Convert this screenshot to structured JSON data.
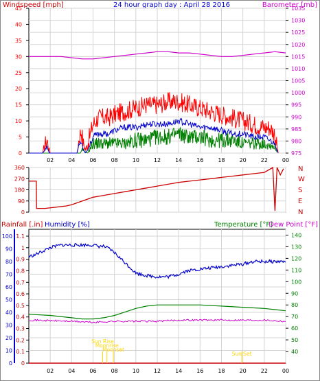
{
  "header": {
    "left_label": "Windspeed [mph]",
    "title": "24 hour graph day : April 28 2016",
    "right_label": "Barometer [mb]"
  },
  "direction_letters": [
    "N",
    "W",
    "S",
    "E",
    "N"
  ],
  "lower_labels": {
    "rainfall": "Rainfall [.in]",
    "humidity": "Humidity [%]",
    "temperature": "Temperature [°F]",
    "dewpoint": "Dew Point [°F]"
  },
  "sun_events": [
    {
      "label": "Sun Rise",
      "hour": 6.9
    },
    {
      "label": "Moonrise",
      "hour": 7.3
    },
    {
      "label": "Moonset",
      "hour": 7.9
    },
    {
      "label": "Sun Set",
      "hour": 19.9
    }
  ],
  "colors": {
    "wind": "#ff0000",
    "gust_avg": "#0000cc",
    "wind_low": "#008000",
    "baro": "#cc00cc",
    "dir": "#cc0000",
    "humidity": "#0000cc",
    "temperature": "#008000",
    "dewpoint": "#cc00cc",
    "rain": "#cc0000",
    "sun": "#ffd700",
    "grid": "#d4d4d4",
    "axis": "#000000"
  },
  "chart_data": [
    {
      "type": "line",
      "title": "24 hour graph day : April 28 2016",
      "xlabel": "",
      "x_ticks": [
        "02",
        "04",
        "06",
        "08",
        "10",
        "12",
        "14",
        "16",
        "18",
        "20",
        "22",
        "00"
      ],
      "y_left_label": "Windspeed [mph]",
      "y_left_ticks": [
        "0",
        "5",
        "10",
        "15",
        "20",
        "25",
        "30",
        "35",
        "40",
        "45"
      ],
      "y_left_range": [
        0,
        45
      ],
      "y_right_label": "Barometer [mb]",
      "y_right_ticks": [
        "975",
        "980",
        "985",
        "990",
        "995",
        "1000",
        "1005",
        "1010",
        "1015",
        "1020",
        "1025",
        "1030",
        "1035"
      ],
      "y_right_range": [
        975,
        1035
      ],
      "series": [
        {
          "axis": "left",
          "hours": [
            0,
            1.3,
            1.5,
            1.7,
            1.9,
            2.0,
            4.5,
            4.7,
            4.9,
            5.1,
            5.3,
            5.5,
            6.0,
            6.5,
            7.0,
            7.5,
            8.0,
            9.0,
            10.0,
            11.0,
            12.0,
            13.0,
            14.0,
            15.0,
            16.0,
            17.0,
            18.0,
            19.0,
            20.0,
            21.0,
            22.0,
            22.5,
            23.0,
            23.3
          ],
          "values": [
            0,
            0,
            3,
            4,
            1,
            0,
            0,
            5,
            7,
            3,
            1,
            3,
            9,
            11,
            11,
            11,
            12,
            13,
            14,
            15,
            15,
            16,
            16,
            15,
            14,
            13,
            12,
            11,
            10,
            9,
            8,
            8,
            6,
            0
          ]
        },
        {
          "axis": "left",
          "hours": [
            0,
            1.3,
            1.5,
            1.7,
            1.9,
            2.0,
            4.5,
            4.7,
            4.9,
            5.1,
            5.3,
            5.5,
            6.0,
            6.5,
            7.0,
            7.5,
            8.0,
            9.0,
            10.0,
            11.0,
            12.0,
            13.0,
            14.0,
            15.0,
            16.0,
            17.0,
            18.0,
            19.0,
            20.0,
            21.0,
            22.0,
            22.5,
            23.0,
            23.3
          ],
          "values": [
            0,
            0,
            1,
            2,
            0,
            0,
            0,
            3,
            4,
            1,
            0,
            1,
            5,
            6,
            6,
            6,
            7,
            8,
            8,
            9,
            9,
            9,
            10,
            9,
            8,
            8,
            7,
            6,
            6,
            5,
            5,
            4,
            3,
            0
          ]
        },
        {
          "axis": "left",
          "hours": [
            0,
            4.8,
            5.0,
            5.5,
            6.0,
            7.0,
            8.0,
            9.0,
            10.0,
            11.0,
            12.0,
            13.0,
            14.0,
            15.0,
            16.0,
            17.0,
            18.0,
            19.0,
            20.0,
            21.0,
            22.0,
            23.0,
            23.3
          ],
          "values": [
            0,
            0,
            1,
            0,
            3,
            3,
            3,
            3,
            4,
            4,
            5,
            5,
            6,
            5,
            5,
            4,
            4,
            4,
            3,
            3,
            3,
            2,
            0
          ]
        },
        {
          "axis": "right",
          "hours": [
            0,
            2,
            3,
            4,
            5,
            6,
            7,
            8,
            9,
            10,
            11,
            12,
            13,
            14,
            15,
            16,
            17,
            18,
            19,
            20,
            21,
            22,
            23,
            24
          ],
          "values": [
            1015,
            1015,
            1015,
            1014.5,
            1014,
            1014,
            1014.5,
            1015,
            1015.5,
            1016,
            1016.5,
            1017,
            1017,
            1016.5,
            1016.5,
            1016,
            1015.5,
            1015,
            1015,
            1015.5,
            1016,
            1016.5,
            1017,
            1016.5
          ]
        }
      ]
    },
    {
      "type": "scatter",
      "title": "",
      "xlabel": "",
      "y_ticks": [
        "0",
        "90",
        "180",
        "270",
        "360"
      ],
      "y_range": [
        0,
        360
      ],
      "series": [
        {
          "hours": [
            0,
            0.7,
            0.72,
            0.8,
            1.5,
            2.5,
            3.5,
            4.0,
            4.5,
            5.0,
            5.5,
            6.0,
            7.0,
            8.0,
            9.0,
            10.0,
            11.0,
            12.0,
            13.0,
            14.0,
            15.0,
            16.0,
            17.0,
            18.0,
            19.0,
            20.0,
            21.0,
            22.0,
            22.8,
            23.0,
            23.2,
            23.5,
            23.8
          ],
          "values": [
            250,
            250,
            30,
            30,
            30,
            40,
            50,
            60,
            75,
            90,
            105,
            120,
            135,
            150,
            165,
            180,
            195,
            210,
            225,
            240,
            250,
            260,
            270,
            280,
            290,
            300,
            310,
            320,
            360,
            10,
            360,
            300,
            350
          ]
        }
      ]
    },
    {
      "type": "line",
      "title": "",
      "xlabel": "",
      "y_left_label": "Humidity [%]",
      "y_left_ticks": [
        "0",
        "10",
        "20",
        "30",
        "40",
        "50",
        "60",
        "70",
        "80",
        "90",
        "100"
      ],
      "y_left_range": [
        0,
        100
      ],
      "y_rain_ticks": [
        "0",
        "0.1",
        "0.2",
        "0.3",
        "0.4",
        "0.5",
        "0.6",
        "0.7",
        "0.8",
        "0.9",
        "1",
        "1.1"
      ],
      "y_rain_range": [
        0,
        1.1
      ],
      "y_right_label": "Temperature [°F]",
      "y_right_ticks": [
        "40",
        "50",
        "60",
        "70",
        "80",
        "90",
        "100",
        "110",
        "120",
        "130",
        "140"
      ],
      "y_right_range": [
        30,
        145
      ],
      "series": [
        {
          "axis": "humidity",
          "hours": [
            0,
            0.5,
            1.0,
            1.5,
            2.0,
            2.5,
            3.0,
            3.5,
            4.0,
            5.0,
            6.0,
            6.5,
            7.0,
            7.5,
            8.0,
            8.5,
            9.0,
            9.5,
            10.0,
            10.5,
            11.0,
            12.0,
            13.0,
            13.5,
            14.0,
            14.5,
            15.0,
            16.0,
            17.0,
            18.0,
            19.0,
            20.0,
            21.0,
            22.0,
            23.0,
            24.0
          ],
          "values": [
            84,
            85,
            87,
            89,
            91,
            92,
            93,
            93,
            93,
            93,
            93,
            92,
            92,
            90,
            87,
            83,
            79,
            75,
            71,
            70,
            69,
            68,
            68,
            69,
            70,
            72,
            73,
            74,
            75,
            76,
            77,
            78,
            80,
            80,
            80,
            80
          ]
        },
        {
          "axis": "temperature",
          "hours": [
            0,
            2,
            4,
            5,
            6,
            7,
            8,
            9,
            10,
            11,
            12,
            14,
            16,
            18,
            20,
            22,
            23,
            24
          ],
          "values": [
            72,
            71,
            69,
            68,
            68,
            69,
            71,
            74,
            77,
            79,
            80,
            80,
            80,
            79,
            78,
            77,
            76,
            75
          ]
        },
        {
          "axis": "temperature",
          "hours": [
            0,
            4,
            6,
            8,
            10,
            12,
            14,
            16,
            18,
            20,
            22,
            24
          ],
          "values": [
            67,
            66,
            65,
            66,
            66,
            66,
            67,
            67,
            67,
            67,
            67,
            66
          ]
        },
        {
          "axis": "rain",
          "hours": [
            0,
            24
          ],
          "values": [
            0,
            0
          ]
        }
      ]
    }
  ]
}
